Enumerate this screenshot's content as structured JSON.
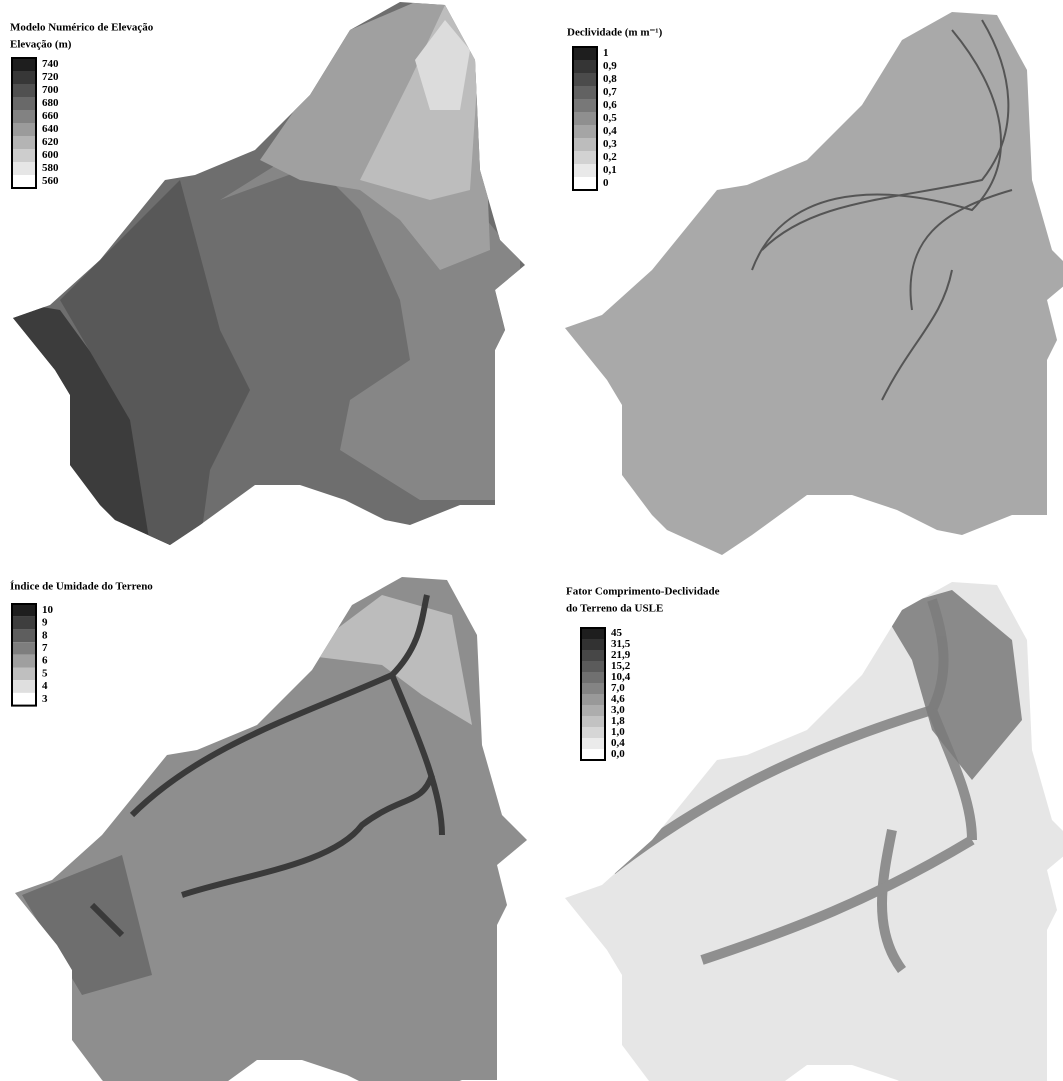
{
  "panels": [
    {
      "title": [
        "Modelo Numérico de Elevação",
        "Elevação (m)"
      ],
      "legend": [
        "740",
        "720",
        "700",
        "680",
        "660",
        "640",
        "620",
        "600",
        "580",
        "560"
      ]
    },
    {
      "title": [
        "Declividade (m m⁻¹)"
      ],
      "legend": [
        "1",
        "0,9",
        "0,8",
        "0,7",
        "0,6",
        "0,5",
        "0,4",
        "0,3",
        "0,2",
        "0,1",
        "0"
      ]
    },
    {
      "title": [
        "Índice de Umidade do Terreno"
      ],
      "legend": [
        "10",
        "9",
        "8",
        "7",
        "6",
        "5",
        "4",
        "3"
      ]
    },
    {
      "title": [
        "Fator Comprimento-Declividade",
        "do Terreno da USLE"
      ],
      "legend": [
        "45",
        "31,5",
        "21,9",
        "15,2",
        "10,4",
        "7,0",
        "4,6",
        "3,0",
        "1,8",
        "1,0",
        "0,4",
        "0,0"
      ]
    }
  ]
}
